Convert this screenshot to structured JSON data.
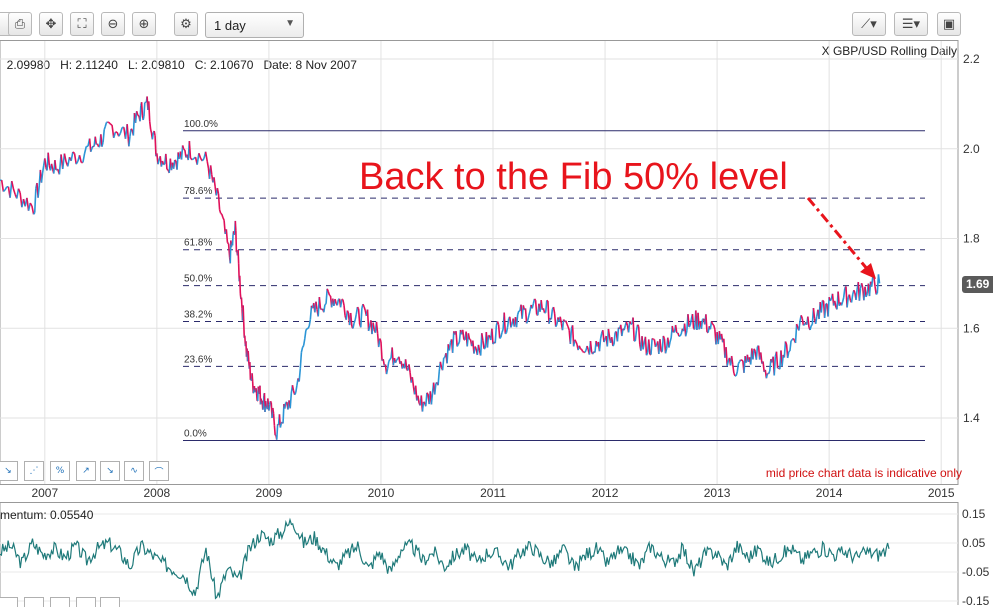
{
  "toolbar": {
    "interval_value": "1 day",
    "icons": [
      "print-icon",
      "pan-icon",
      "fit-icon",
      "zoom-out-icon",
      "zoom-in-icon",
      "settings-icon",
      "draw-tool-icon",
      "list-menu-icon",
      "save-icon"
    ]
  },
  "info": {
    "open": "2.09980",
    "open_label": "",
    "high": "2.11240",
    "high_label": "H:",
    "low": "2.09810",
    "low_label": "L:",
    "close": "2.10670",
    "close_label": "C:",
    "date": "8 Nov 2007",
    "date_label": "Date:",
    "symbol": "X GBP/USD Rolling Daily"
  },
  "annotation": {
    "text": "Back to the Fib 50% level",
    "color": "#e8141c"
  },
  "note": "mid price chart data is indicative only",
  "current_price_tag": "1.69",
  "momentum_label": "mentum: 0.05540",
  "colors": {
    "up": "#2b95d6",
    "down": "#e0105a",
    "fib": "#2b2b6b",
    "momentum": "#1f7a7a",
    "annotation": "#e8141c"
  },
  "chart_data": [
    {
      "type": "line",
      "title": "X GBP/USD Rolling Daily",
      "xlabel": "",
      "ylabel": "",
      "x_ticks": [
        "2007",
        "2008",
        "2009",
        "2010",
        "2011",
        "2012",
        "2013",
        "2014",
        "2015"
      ],
      "y_ticks": [
        "1.4",
        "1.6",
        "1.8",
        "2.0",
        "2.2"
      ],
      "ylim": [
        1.33,
        2.22
      ],
      "xlim": [
        2006.6,
        2015.15
      ],
      "series": [
        {
          "x": [
            2006.6,
            2006.75,
            2006.9,
            2007.0,
            2007.1,
            2007.25,
            2007.4,
            2007.5,
            2007.6,
            2007.75,
            2007.85,
            2007.92,
            2008.0,
            2008.1,
            2008.2,
            2008.3,
            2008.45,
            2008.55,
            2008.65,
            2008.7,
            2008.75,
            2008.8,
            2008.85,
            2008.9,
            2008.95,
            2009.0,
            2009.07,
            2009.15,
            2009.25,
            2009.35,
            2009.45,
            2009.55,
            2009.65,
            2009.75,
            2009.85,
            2009.95,
            2010.05,
            2010.15,
            2010.25,
            2010.35,
            2010.45,
            2010.55,
            2010.65,
            2010.75,
            2010.85,
            2010.95,
            2011.05,
            2011.15,
            2011.25,
            2011.35,
            2011.45,
            2011.55,
            2011.65,
            2011.75,
            2011.85,
            2011.95,
            2012.05,
            2012.15,
            2012.25,
            2012.35,
            2012.45,
            2012.55,
            2012.65,
            2012.75,
            2012.85,
            2012.95,
            2013.05,
            2013.15,
            2013.25,
            2013.35,
            2013.45,
            2013.55,
            2013.65,
            2013.75,
            2013.85,
            2013.95,
            2014.05,
            2014.15,
            2014.25,
            2014.35,
            2014.45
          ],
          "y": [
            1.93,
            1.9,
            1.87,
            1.97,
            1.96,
            1.98,
            2.0,
            2.02,
            2.05,
            2.03,
            2.08,
            2.1,
            1.99,
            1.97,
            1.98,
            2.0,
            1.97,
            1.88,
            1.76,
            1.82,
            1.68,
            1.55,
            1.48,
            1.46,
            1.44,
            1.43,
            1.37,
            1.42,
            1.47,
            1.62,
            1.65,
            1.67,
            1.66,
            1.62,
            1.63,
            1.6,
            1.52,
            1.55,
            1.5,
            1.43,
            1.45,
            1.53,
            1.57,
            1.58,
            1.56,
            1.57,
            1.6,
            1.62,
            1.63,
            1.64,
            1.65,
            1.62,
            1.6,
            1.57,
            1.56,
            1.57,
            1.58,
            1.59,
            1.6,
            1.56,
            1.56,
            1.57,
            1.6,
            1.61,
            1.62,
            1.6,
            1.56,
            1.51,
            1.52,
            1.55,
            1.5,
            1.53,
            1.56,
            1.62,
            1.62,
            1.64,
            1.66,
            1.67,
            1.68,
            1.69,
            1.7
          ]
        }
      ],
      "fib_levels": [
        {
          "label": "100.0%",
          "value": 2.04
        },
        {
          "label": "78.6%",
          "value": 1.89
        },
        {
          "label": "61.8%",
          "value": 1.775
        },
        {
          "label": "50.0%",
          "value": 1.695
        },
        {
          "label": "38.2%",
          "value": 1.615
        },
        {
          "label": "23.6%",
          "value": 1.515
        },
        {
          "label": "0.0%",
          "value": 1.35
        }
      ]
    },
    {
      "type": "line",
      "title": "Momentum",
      "y_ticks": [
        "0.15",
        "0.05",
        "-0.05",
        "-0.15"
      ],
      "ylim": [
        -0.16,
        0.16
      ],
      "series": [
        {
          "name": "Momentum",
          "values": [
            0.02,
            0.04,
            -0.02,
            0.05,
            0.01,
            0.03,
            0.0,
            0.04,
            -0.01,
            0.03,
            0.05,
            0.02,
            -0.03,
            0.04,
            0.01,
            -0.02,
            -0.04,
            -0.06,
            -0.12,
            0.03,
            -0.14,
            -0.04,
            -0.08,
            0.03,
            0.08,
            0.06,
            0.09,
            0.13,
            0.05,
            0.07,
            0.02,
            -0.03,
            0.01,
            0.04,
            -0.04,
            0.02,
            -0.05,
            0.03,
            0.04,
            -0.01,
            0.02,
            -0.03,
            0.01,
            0.03,
            -0.02,
            0.02,
            0.01,
            -0.03,
            0.02,
            0.04,
            0.0,
            -0.02,
            0.03,
            -0.04,
            0.01,
            0.03,
            -0.02,
            0.02,
            0.01,
            -0.03,
            0.04,
            0.0,
            -0.02,
            0.03,
            -0.05,
            0.01,
            0.02,
            -0.03,
            0.04,
            0.0,
            0.03,
            -0.02,
            0.01,
            0.03,
            -0.01,
            0.02,
            0.03,
            0.01,
            0.02,
            0.0,
            0.02,
            0.01,
            0.03
          ]
        }
      ]
    }
  ]
}
